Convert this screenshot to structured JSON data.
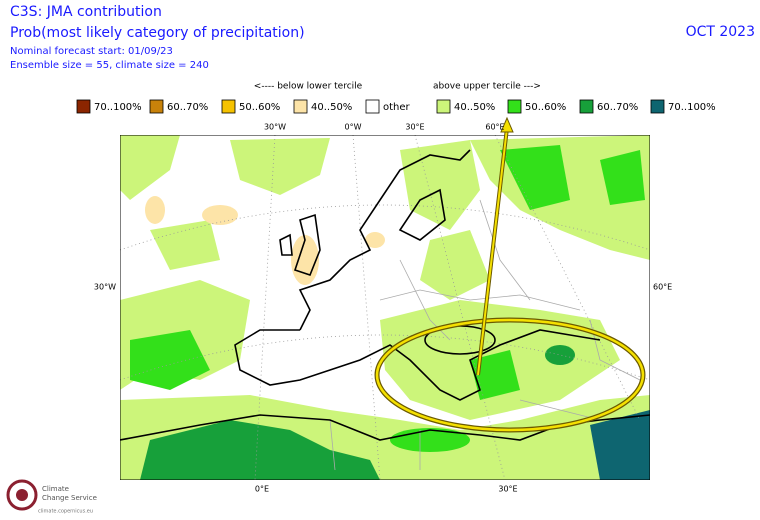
{
  "header": {
    "title": "C3S: JMA contribution",
    "subtitle": "Prob(most likely category of precipitation)",
    "forecast_start": "Nominal forecast start: 01/09/23",
    "ensemble": "Ensemble size = 55, climate size = 240",
    "date": "OCT 2023"
  },
  "legend": {
    "below_label": "<---- below lower tercile",
    "above_label": "above upper tercile --->",
    "items": [
      {
        "label": "70..100%",
        "color": "#8b2500"
      },
      {
        "label": "60..70%",
        "color": "#c8820a"
      },
      {
        "label": "50..60%",
        "color": "#f5c200"
      },
      {
        "label": "40..50%",
        "color": "#fde4a8"
      },
      {
        "label": "other",
        "color": "#ffffff"
      },
      {
        "label": "40..50%",
        "color": "#ccf57a"
      },
      {
        "label": "50..60%",
        "color": "#33e01a"
      },
      {
        "label": "60..70%",
        "color": "#17a03a"
      },
      {
        "label": "70..100%",
        "color": "#0e6570"
      }
    ]
  },
  "map": {
    "top_labels": [
      "30°W",
      "0°W",
      "30°E",
      "60°E"
    ],
    "left_label": "30°W",
    "right_label": "60°E",
    "bottom_labels": [
      "0°E",
      "30°E"
    ]
  },
  "logo": {
    "line1": "Climate",
    "line2": "Change Service",
    "url": "climate.copernicus.eu"
  }
}
